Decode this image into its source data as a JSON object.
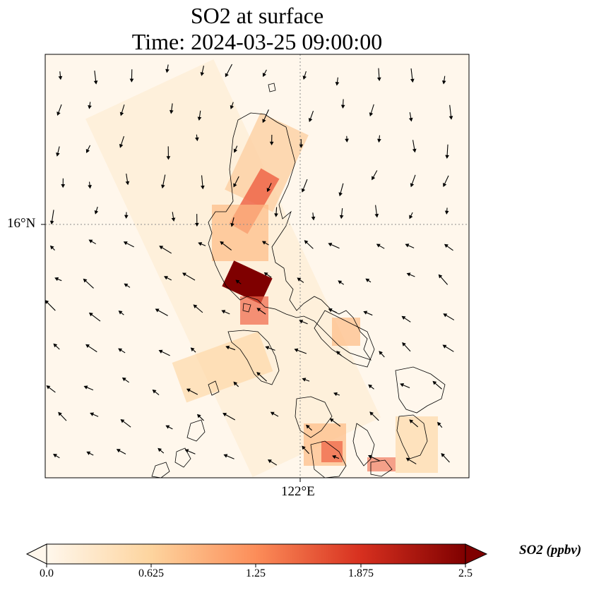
{
  "title_line1": "SO2 at surface",
  "title_line2": "Time: 2024-03-25 09:00:00",
  "lat_tick": "16°N",
  "lon_tick": "122°E",
  "colorbar": {
    "label": "SO2 (ppbv)",
    "ticks": [
      "0.0",
      "0.625",
      "1.25",
      "1.875",
      "2.5"
    ],
    "min": 0.0,
    "max": 2.5,
    "colormap": "OrRd",
    "colors": [
      "#fff7ec",
      "#fdd49e",
      "#fc8d59",
      "#d7301f",
      "#7f0000"
    ]
  },
  "map": {
    "background_color": "#fff7ec",
    "gridline_color": "#8c8c8c",
    "coastline_color": "#000000",
    "field": "SO2 concentration",
    "features": [
      "coastline",
      "wind-vectors",
      "gridlines"
    ]
  }
}
